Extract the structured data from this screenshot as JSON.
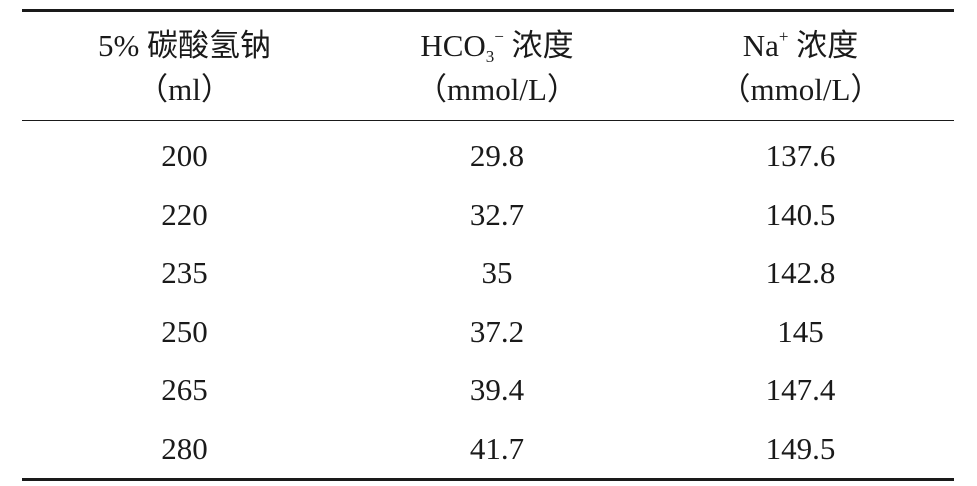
{
  "table": {
    "headers": [
      {
        "line1": "5% 碳酸氢钠",
        "line2": "（ml）"
      },
      {
        "line1_a": "HCO",
        "line1_sub": "3",
        "line1_sup": "−",
        "line1_b": " 浓度",
        "line2": "（mmol/L）"
      },
      {
        "line1_a": "Na",
        "line1_sup": "+",
        "line1_b": " 浓度",
        "line2": "（mmol/L）"
      }
    ],
    "rows": [
      [
        "200",
        "29.8",
        "137.6"
      ],
      [
        "220",
        "32.7",
        "140.5"
      ],
      [
        "235",
        "35",
        "142.8"
      ],
      [
        "250",
        "37.2",
        "145"
      ],
      [
        "265",
        "39.4",
        "147.4"
      ],
      [
        "280",
        "41.7",
        "149.5"
      ]
    ]
  }
}
